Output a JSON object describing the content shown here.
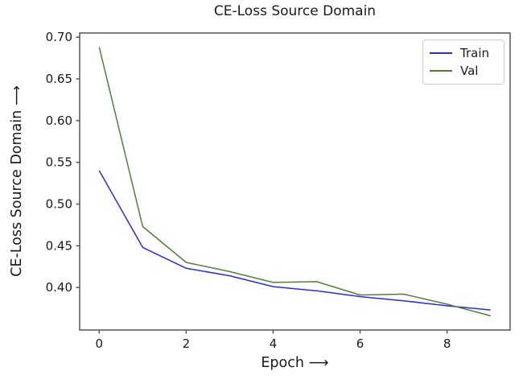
{
  "chart_data": {
    "type": "line",
    "title": "CE-Loss Source Domain",
    "xlabel": "Epoch ⟶",
    "ylabel": "CE-Loss Source Domain ⟶",
    "x": [
      0,
      1,
      2,
      3,
      4,
      5,
      6,
      7,
      8,
      9
    ],
    "series": [
      {
        "name": "Train",
        "color": "#2a2adf",
        "values": [
          0.54,
          0.448,
          0.423,
          0.414,
          0.401,
          0.396,
          0.389,
          0.384,
          0.378,
          0.373
        ]
      },
      {
        "name": "Val",
        "color": "#517f38",
        "values": [
          0.688,
          0.473,
          0.43,
          0.419,
          0.406,
          0.407,
          0.391,
          0.392,
          0.38,
          0.366
        ]
      }
    ],
    "xticks": [
      0,
      2,
      4,
      6,
      8
    ],
    "xticklabels": [
      "0",
      "2",
      "4",
      "6",
      "8"
    ],
    "yticks": [
      0.4,
      0.45,
      0.5,
      0.55,
      0.6,
      0.65,
      0.7
    ],
    "yticklabels": [
      "0.40",
      "0.45",
      "0.50",
      "0.55",
      "0.60",
      "0.65",
      "0.70"
    ],
    "xlim": [
      -0.45,
      9.45
    ],
    "ylim": [
      0.349,
      0.705
    ],
    "grid": false,
    "legend_position": "upper right",
    "frame_color": "#555555",
    "line_width": 1.5
  }
}
